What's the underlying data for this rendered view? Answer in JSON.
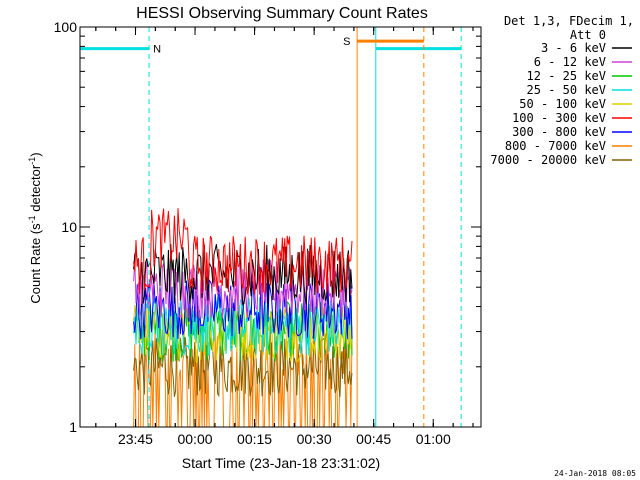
{
  "chart_data": {
    "type": "line",
    "title": "HESSI Observing Summary Count Rates",
    "xlabel": "Start Time (23-Jan-18 23:31:02)",
    "ylabel_prefix": "Count Rate (s",
    "ylabel_exp1": "-1",
    "ylabel_mid": " detector",
    "ylabel_exp2": "-1",
    "ylabel_suffix": ")",
    "yscale": "log",
    "ylim": [
      1,
      100
    ],
    "xlim_minutes_after_23_31_02": [
      0,
      101
    ],
    "x_ticks": [
      {
        "label": "23:45",
        "minutes": 13.97
      },
      {
        "label": "00:00",
        "minutes": 28.97
      },
      {
        "label": "00:15",
        "minutes": 43.97
      },
      {
        "label": "00:30",
        "minutes": 58.97
      },
      {
        "label": "00:45",
        "minutes": 73.97
      },
      {
        "label": "01:00",
        "minutes": 88.97
      }
    ],
    "y_ticks": [
      {
        "label": "1",
        "value": 1
      },
      {
        "label": "10",
        "value": 10
      },
      {
        "label": "100",
        "value": 100
      }
    ],
    "legend_header_line1": "Det 1,3, FDecim 1,",
    "legend_header_line2": "Att 0",
    "legend_position": "top-right outside",
    "series": [
      {
        "name": "3 - 6 keV",
        "color": "#000000",
        "level": 5.8
      },
      {
        "name": "6 - 12 keV",
        "color": "#d040d0",
        "level": 4.9
      },
      {
        "name": "12 - 25 keV",
        "color": "#00c800",
        "level": 3.0
      },
      {
        "name": "25 - 50 keV",
        "color": "#00e0e0",
        "level": 3.2
      },
      {
        "name": "50 - 100 keV",
        "color": "#e0d000",
        "level": 3.0
      },
      {
        "name": "100 - 300 keV",
        "color": "#ff0000",
        "level": 6.5
      },
      {
        "name": "300 - 800 keV",
        "color": "#0000ff",
        "level": 3.9
      },
      {
        "name": "800 - 7000 keV",
        "color": "#ff8000",
        "level": 2.2
      },
      {
        "name": "7000 - 20000 keV",
        "color": "#806000",
        "level": 2.0
      }
    ],
    "data_interval_minutes": [
      13.5,
      68.8
    ],
    "annotations": [
      {
        "label": "N",
        "kind": "night",
        "color": "#00e0e0"
      },
      {
        "label": "S",
        "kind": "saa",
        "color": "#ff8000"
      }
    ],
    "saa_start_minutes": 69.8,
    "saa_end_minutes": 86.6,
    "night_segments_minutes": [
      [
        0,
        17.4
      ],
      [
        74.5,
        96.0
      ]
    ],
    "night_level": 78,
    "saa_level": 85
  },
  "footer": {
    "date": "24-Jan-2018 08:05"
  }
}
